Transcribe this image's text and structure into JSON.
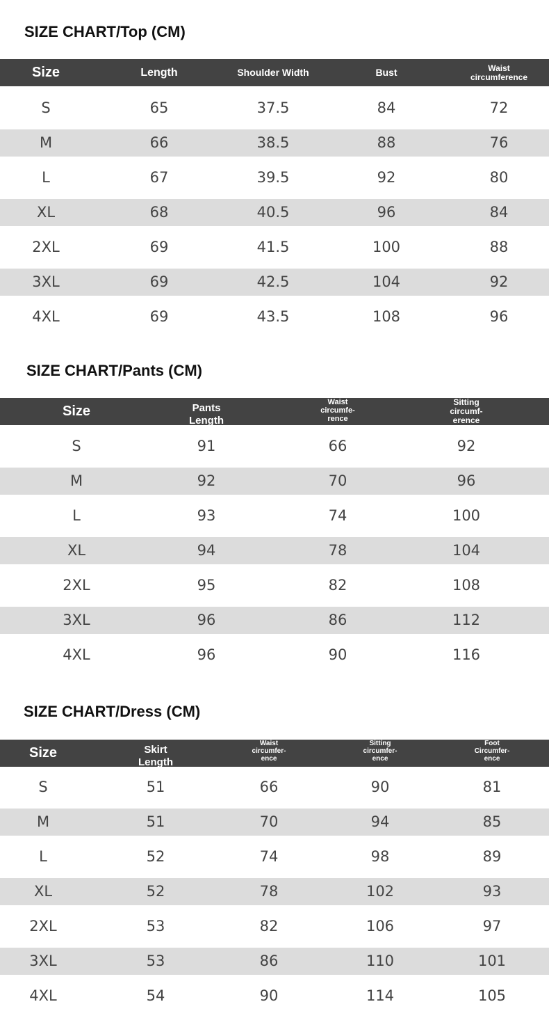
{
  "tables": [
    {
      "title": "SIZE CHART/Top (CM)",
      "headers": [
        "Size",
        "Length",
        "Shoulder Width",
        "Bust",
        "Waist circumference"
      ],
      "rows": [
        [
          "S",
          "65",
          "37.5",
          "84",
          "72"
        ],
        [
          "M",
          "66",
          "38.5",
          "88",
          "76"
        ],
        [
          "L",
          "67",
          "39.5",
          "92",
          "80"
        ],
        [
          "XL",
          "68",
          "40.5",
          "96",
          "84"
        ],
        [
          "2XL",
          "69",
          "41.5",
          "100",
          "88"
        ],
        [
          "3XL",
          "69",
          "42.5",
          "104",
          "92"
        ],
        [
          "4XL",
          "69",
          "43.5",
          "108",
          "96"
        ]
      ]
    },
    {
      "title": "SIZE CHART/Pants (CM)",
      "headers": [
        "Size",
        "Pants\nLength",
        "Waist\ncircumfe-\nrence",
        "Sitting\ncircumf-\nerence"
      ],
      "rows": [
        [
          "S",
          "91",
          "66",
          "92"
        ],
        [
          "M",
          "92",
          "70",
          "96"
        ],
        [
          "L",
          "93",
          "74",
          "100"
        ],
        [
          "XL",
          "94",
          "78",
          "104"
        ],
        [
          "2XL",
          "95",
          "82",
          "108"
        ],
        [
          "3XL",
          "96",
          "86",
          "112"
        ],
        [
          "4XL",
          "96",
          "90",
          "116"
        ]
      ]
    },
    {
      "title": "SIZE CHART/Dress (CM)",
      "headers": [
        "Size",
        "Skirt\nLength",
        "Waist\ncircumfer-\nence",
        "Sitting\ncircumfer-\nence",
        "Foot\nCircumfer-\nence"
      ],
      "rows": [
        [
          "S",
          "51",
          "66",
          "90",
          "81"
        ],
        [
          "M",
          "51",
          "70",
          "94",
          "85"
        ],
        [
          "L",
          "52",
          "74",
          "98",
          "89"
        ],
        [
          "XL",
          "52",
          "78",
          "102",
          "93"
        ],
        [
          "2XL",
          "53",
          "82",
          "106",
          "97"
        ],
        [
          "3XL",
          "53",
          "86",
          "110",
          "101"
        ],
        [
          "4XL",
          "54",
          "90",
          "114",
          "105"
        ]
      ]
    }
  ]
}
